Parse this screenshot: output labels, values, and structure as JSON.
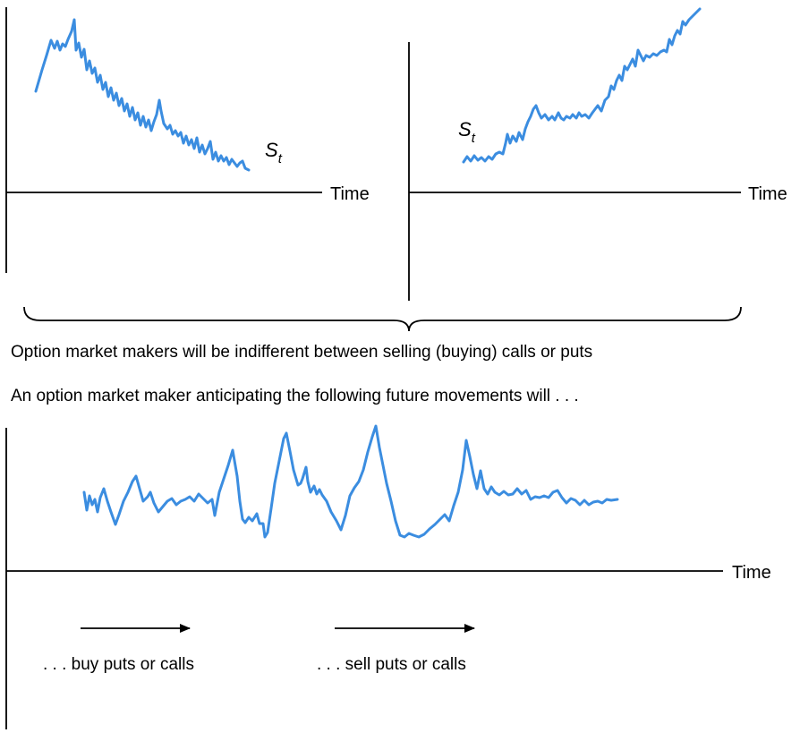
{
  "colors": {
    "series": "#3b8de0",
    "axis": "#000000",
    "text": "#000000"
  },
  "panel_left": {
    "time_label": "Time",
    "price_symbol": "S",
    "price_subscript": "t",
    "trend": "falling"
  },
  "panel_right": {
    "time_label": "Time",
    "price_symbol": "S",
    "price_subscript": "t",
    "trend": "rising"
  },
  "caption_indifferent": "Option market makers will be indifferent between selling (buying) calls or puts",
  "caption_anticipating": "An option market maker anticipating the following future movements will . . .",
  "panel_bottom": {
    "time_label": "Time",
    "pattern": "volatile"
  },
  "arrow_labels": {
    "buy": ". . . buy puts or calls",
    "sell": ". . . sell puts or calls"
  }
}
